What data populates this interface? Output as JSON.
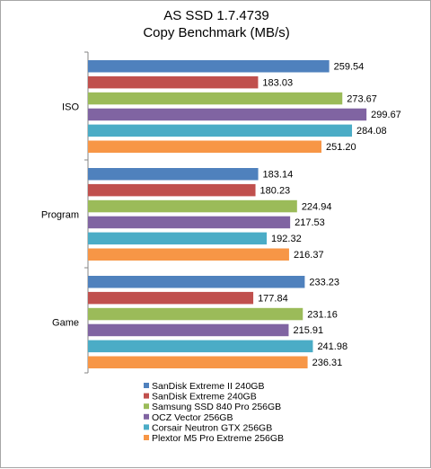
{
  "chart_data": {
    "type": "bar",
    "orientation": "horizontal",
    "title": "AS SSD 1.7.4739",
    "subtitle": "Copy Benchmark (MB/s)",
    "xlabel": "",
    "ylabel": "",
    "xlim": [
      0,
      330
    ],
    "grid": false,
    "legend_position": "bottom",
    "categories": [
      "ISO",
      "Program",
      "Game"
    ],
    "series": [
      {
        "name": "SanDisk Extreme II 240GB",
        "color": "#4f81bd",
        "values": [
          259.54,
          183.14,
          233.23
        ]
      },
      {
        "name": "SanDisk Extreme 240GB",
        "color": "#c0504d",
        "values": [
          183.03,
          180.23,
          177.84
        ]
      },
      {
        "name": "Samsung SSD 840 Pro 256GB",
        "color": "#9bbb59",
        "values": [
          273.67,
          224.94,
          231.16
        ]
      },
      {
        "name": "OCZ Vector 256GB",
        "color": "#8064a2",
        "values": [
          299.67,
          217.53,
          215.91
        ]
      },
      {
        "name": "Corsair Neutron GTX 256GB",
        "color": "#4bacc6",
        "values": [
          284.08,
          192.32,
          241.98
        ]
      },
      {
        "name": "Plextor M5 Pro Extreme 256GB",
        "color": "#f79646",
        "values": [
          251.2,
          216.37,
          236.31
        ]
      }
    ],
    "value_labels": [
      [
        "259.54",
        "183.14",
        "233.23"
      ],
      [
        "183.03",
        "180.23",
        "177.84"
      ],
      [
        "273.67",
        "224.94",
        "231.16"
      ],
      [
        "299.67",
        "217.53",
        "215.91"
      ],
      [
        "284.08",
        "192.32",
        "241.98"
      ],
      [
        "251.20",
        "216.37",
        "236.31"
      ]
    ]
  }
}
